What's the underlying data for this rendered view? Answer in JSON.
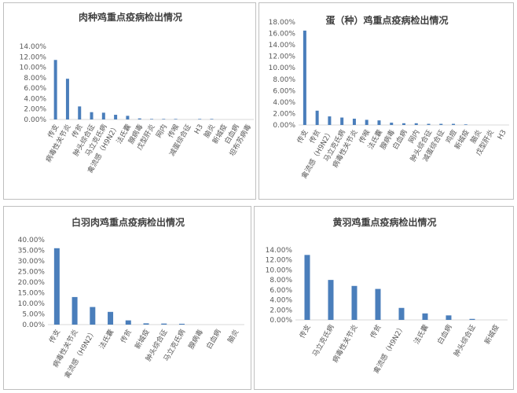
{
  "chart_data": [
    {
      "type": "bar",
      "title": "肉种鸡重点疫病检出情况",
      "ylim": [
        0,
        0.14
      ],
      "ytick_labels": [
        "0.00%",
        "2.00%",
        "4.00%",
        "6.00%",
        "8.00%",
        "10.00%",
        "12.00%",
        "14.00%"
      ],
      "categories": [
        "传支",
        "病毒性关节炎",
        "传贫",
        "肿头综合征",
        "马立克氏病",
        "禽流感（H9N2）",
        "法氏囊",
        "腺病毒",
        "戊型肝炎",
        "网内",
        "传喉",
        "减蛋综合征",
        "H3",
        "脑炎",
        "新城疫",
        "白血病",
        "坦布苏病毒"
      ],
      "values": [
        0.114,
        0.078,
        0.025,
        0.014,
        0.013,
        0.009,
        0.007,
        0.002,
        0.001,
        0.001,
        0.001,
        0.0,
        0.001,
        0.001,
        0.0,
        0.0,
        0.0
      ],
      "color": "#4a7ebb",
      "legend": "none",
      "grid": false
    },
    {
      "type": "bar",
      "title": "蛋（种）鸡重点疫病检出情况",
      "ylim": [
        0,
        0.18
      ],
      "ytick_labels": [
        "0.00%",
        "2.00%",
        "4.00%",
        "6.00%",
        "8.00%",
        "10.00%",
        "12.00%",
        "14.00%",
        "16.00%",
        "18.00%"
      ],
      "categories": [
        "传支",
        "传贫",
        "禽流感（H9N2）",
        "马立克氏病",
        "病毒性关节炎",
        "传喉",
        "法氏囊",
        "腺病毒",
        "白血病",
        "网内",
        "肿头综合征",
        "减蛋综合征",
        "鸡痘",
        "新城疫",
        "脑炎",
        "戊型肝炎",
        "H3"
      ],
      "values": [
        0.165,
        0.025,
        0.015,
        0.013,
        0.011,
        0.009,
        0.008,
        0.004,
        0.003,
        0.003,
        0.002,
        0.002,
        0.002,
        0.001,
        0.0,
        0.0,
        0.0
      ],
      "color": "#4a7ebb",
      "legend": "none",
      "grid": false
    },
    {
      "type": "bar",
      "title": "白羽肉鸡重点疫病检出情况",
      "ylim": [
        0,
        0.4
      ],
      "ytick_labels": [
        "0.00%",
        "5.00%",
        "10.00%",
        "15.00%",
        "20.00%",
        "25.00%",
        "30.00%",
        "35.00%",
        "40.00%"
      ],
      "categories": [
        "传支",
        "病毒性关节炎",
        "禽流感（H9N2）",
        "法氏囊",
        "传贫",
        "新城疫",
        "肿头综合征",
        "马立克氏病",
        "腺病毒",
        "白血病",
        "脑炎"
      ],
      "values": [
        0.36,
        0.13,
        0.083,
        0.06,
        0.02,
        0.006,
        0.005,
        0.004,
        0.0,
        0.0,
        0.0
      ],
      "color": "#4a7ebb",
      "legend": "none",
      "grid": false
    },
    {
      "type": "bar",
      "title": "黄羽鸡重点疫病检出情况",
      "ylim": [
        0,
        0.14
      ],
      "ytick_labels": [
        "0.00%",
        "2.00%",
        "4.00%",
        "6.00%",
        "8.00%",
        "10.00%",
        "12.00%",
        "14.00%"
      ],
      "categories": [
        "传支",
        "马立克氏病",
        "病毒性关节炎",
        "传贫",
        "禽流感（H9N2）",
        "法氏囊",
        "白血病",
        "肿头综合征",
        "新城疫"
      ],
      "values": [
        0.13,
        0.08,
        0.068,
        0.062,
        0.024,
        0.013,
        0.009,
        0.002,
        0.0
      ],
      "color": "#4a7ebb",
      "legend": "none",
      "grid": false
    }
  ]
}
